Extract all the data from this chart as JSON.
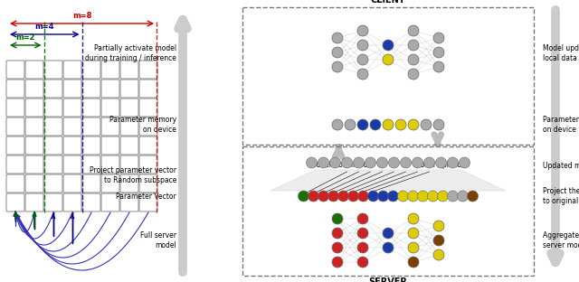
{
  "bg_color": "#ffffff",
  "m2_color": "#006400",
  "m4_color": "#00008B",
  "m8_color": "#CC0000",
  "gray": "#aaaaaa",
  "blue_node": "#1a3aaa",
  "yellow_node": "#ddcc00",
  "red_node": "#cc2222",
  "green_node": "#1a7000",
  "brown_node": "#7a4000",
  "grid_rows": 8,
  "grid_cols": 8,
  "client_label": "CLIENT",
  "server_label": "SERVER",
  "left_labels": [
    "Partially activate model\nduring training / inference",
    "Parameter memory\non device",
    "Project parameter vector\nto Random subspace",
    "Parameter Vector",
    "Full server\nmodel"
  ],
  "right_labels": [
    "Model updated with\nlocal data",
    "Parameter memory\non device",
    "Updated model parameter",
    "Project the updated parameter\nto original space",
    "Aggregated and updated\nserver model"
  ]
}
